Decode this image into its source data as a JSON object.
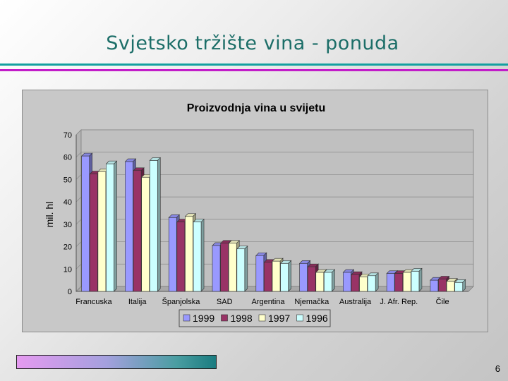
{
  "slide": {
    "title": "Svjetsko tržište vina - ponuda",
    "page_number": "6"
  },
  "colors": {
    "title": "#1c6e68",
    "rule_teal": "#14a0a0",
    "rule_magenta": "#c21cc8"
  },
  "chart_data": {
    "type": "bar",
    "title": "Proizvodnja vina u svijetu",
    "xlabel": "",
    "ylabel": "mil. hl",
    "ylim": [
      0,
      70
    ],
    "yticks": [
      0,
      10,
      20,
      30,
      40,
      50,
      60,
      70
    ],
    "grid": true,
    "legend_position": "bottom",
    "categories": [
      "Francuska",
      "Italija",
      "Španjolska",
      "SAD",
      "Argentina",
      "Njemačka",
      "Australija",
      "J. Afr. Rep.",
      "Čile"
    ],
    "series": [
      {
        "name": "1999",
        "color": "#9999ff",
        "values": [
          60.5,
          58.0,
          33.0,
          20.5,
          16.0,
          12.5,
          8.5,
          8.0,
          5.0
        ]
      },
      {
        "name": "1998",
        "color": "#993366",
        "values": [
          52.5,
          54.0,
          31.0,
          21.5,
          13.0,
          11.0,
          7.5,
          8.0,
          5.5
        ]
      },
      {
        "name": "1997",
        "color": "#ffffcc",
        "values": [
          53.5,
          51.0,
          33.5,
          21.5,
          13.5,
          8.5,
          6.5,
          8.5,
          4.5
        ]
      },
      {
        "name": "1996",
        "color": "#ccffff",
        "values": [
          57.0,
          58.5,
          31.0,
          19.0,
          12.5,
          8.5,
          7.0,
          9.0,
          4.0
        ]
      }
    ]
  }
}
